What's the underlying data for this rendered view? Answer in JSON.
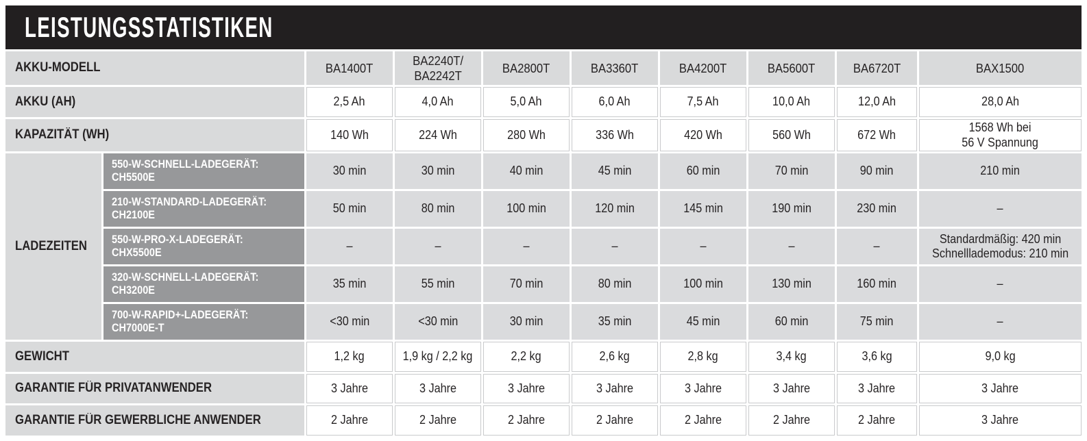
{
  "header": {
    "title": "LEISTUNGSSTATISTIKEN"
  },
  "colors": {
    "title_bar_bg": "#221f20",
    "label_cell_bg": "#d9dadb",
    "value_gray_bg": "#dadbdd",
    "charger_cell_bg": "#97989a",
    "text": "#262324",
    "charger_text": "#ffffff"
  },
  "table": {
    "model_row": {
      "label": "AKKU-MODELL",
      "values": [
        "BA1400T",
        "BA2240T/\nBA2242T",
        "BA2800T",
        "BA3360T",
        "BA4200T",
        "BA5600T",
        "BA6720T",
        "BAX1500"
      ]
    },
    "akku": {
      "label": "AKKU (AH)",
      "values": [
        "2,5 Ah",
        "4,0 Ah",
        "5,0 Ah",
        "6,0 Ah",
        "7,5 Ah",
        "10,0 Ah",
        "12,0 Ah",
        "28,0 Ah"
      ]
    },
    "kapazitaet": {
      "label": "KAPAZITÄT (WH)",
      "values": [
        "140 Wh",
        "224 Wh",
        "280 Wh",
        "336 Wh",
        "420 Wh",
        "560 Wh",
        "672 Wh",
        "1568 Wh bei\n56 V Spannung"
      ]
    },
    "ladezeiten": {
      "label": "LADEZEITEN",
      "chargers": [
        {
          "name": "550-W-SCHNELL-LADEGERÄT:\nCH5500E",
          "values": [
            "30 min",
            "30 min",
            "40 min",
            "45 min",
            "60 min",
            "70 min",
            "90 min",
            "210 min"
          ]
        },
        {
          "name": "210-W-STANDARD-LADEGERÄT:\nCH2100E",
          "values": [
            "50 min",
            "80 min",
            "100 min",
            "120 min",
            "145 min",
            "190 min",
            "230 min",
            "–"
          ]
        },
        {
          "name": "550-W-PRO-X-LADEGERÄT:\nCHX5500E",
          "values": [
            "–",
            "–",
            "–",
            "–",
            "–",
            "–",
            "–",
            "Standardmäßig: 420 min\nSchnelllademodus: 210 min"
          ]
        },
        {
          "name": "320-W-SCHNELL-LADEGERÄT:\nCH3200E",
          "values": [
            "35 min",
            "55 min",
            "70 min",
            "80 min",
            "100 min",
            "130 min",
            "160 min",
            "–"
          ]
        },
        {
          "name": "700-W-RAPID+-LADEGERÄT:\nCH7000E-T",
          "values": [
            "<30 min",
            "<30 min",
            "30 min",
            "35 min",
            "45 min",
            "60 min",
            "75 min",
            "–"
          ]
        }
      ]
    },
    "gewicht": {
      "label": "GEWICHT",
      "values": [
        "1,2 kg",
        "1,9 kg / 2,2 kg",
        "2,2 kg",
        "2,6 kg",
        "2,8 kg",
        "3,4 kg",
        "3,6 kg",
        "9,0 kg"
      ]
    },
    "garantie_privat": {
      "label": "GARANTIE FÜR PRIVATANWENDER",
      "values": [
        "3 Jahre",
        "3 Jahre",
        "3 Jahre",
        "3 Jahre",
        "3 Jahre",
        "3 Jahre",
        "3 Jahre",
        "3 Jahre"
      ]
    },
    "garantie_gewerblich": {
      "label": "GARANTIE FÜR GEWERBLICHE ANWENDER",
      "values": [
        "2 Jahre",
        "2 Jahre",
        "2 Jahre",
        "2 Jahre",
        "2 Jahre",
        "2 Jahre",
        "2 Jahre",
        "3 Jahre"
      ]
    }
  }
}
